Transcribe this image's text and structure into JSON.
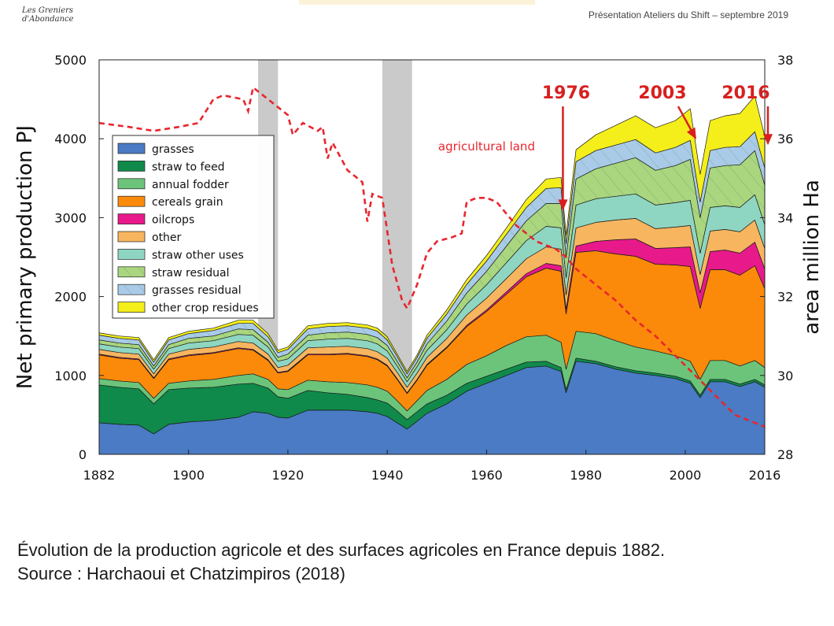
{
  "header": {
    "logo_line1": "Les Greniers",
    "logo_line2": "d'Abondance",
    "presentation": "Présentation Ateliers du Shift – septembre 2019"
  },
  "caption": {
    "line1": "Évolution de la production agricole et des surfaces agricoles en France depuis 1882.",
    "line2": "Source : Harchaoui et Chatzimpiros (2018)"
  },
  "colors": {
    "grasses": "#4a7bc4",
    "straw_to_feed": "#0f8a4a",
    "annual_fodder": "#6cc47a",
    "cereals_grain": "#fb8a0a",
    "oilcrops": "#e8198a",
    "other": "#f7b560",
    "straw_other_uses": "#8fd6c2",
    "straw_residual": "#a9d67e",
    "grasses_residual": "#a9cbe8",
    "other_crop_residues": "#f4ee1a",
    "agri_land_line": "#e8262e",
    "annotation": "#d81f1f",
    "war_band": "#b8b8b8"
  },
  "chart_data": {
    "type": "area",
    "title": "",
    "xlabel": "",
    "ylabel": "Net primary production PJ",
    "y2label": "area million Ha",
    "xlim": [
      1882,
      2016
    ],
    "ylim": [
      0,
      5000
    ],
    "y2lim": [
      28,
      38
    ],
    "x_ticks": [
      "1882",
      "1900",
      "1920",
      "1940",
      "1960",
      "1980",
      "2000",
      "2016"
    ],
    "y_ticks": [
      "0",
      "1000",
      "2000",
      "3000",
      "4000",
      "5000"
    ],
    "y2_ticks": [
      "28",
      "30",
      "32",
      "34",
      "36",
      "38"
    ],
    "war_periods": [
      [
        1914,
        1918
      ],
      [
        1939,
        1945
      ]
    ],
    "x": [
      1882,
      1886,
      1890,
      1893,
      1896,
      1900,
      1905,
      1910,
      1913,
      1916,
      1918,
      1920,
      1924,
      1928,
      1932,
      1936,
      1938,
      1940,
      1942,
      1944,
      1946,
      1948,
      1952,
      1956,
      1960,
      1964,
      1968,
      1972,
      1975,
      1976,
      1978,
      1982,
      1986,
      1990,
      1994,
      1998,
      2001,
      2003,
      2005,
      2008,
      2011,
      2014,
      2016
    ],
    "series": [
      {
        "name": "grasses",
        "values": [
          400,
          380,
          370,
          260,
          380,
          410,
          430,
          470,
          540,
          520,
          470,
          460,
          560,
          560,
          560,
          540,
          520,
          480,
          400,
          320,
          420,
          520,
          640,
          800,
          900,
          1000,
          1100,
          1120,
          1050,
          780,
          1180,
          1150,
          1080,
          1030,
          1000,
          960,
          900,
          720,
          920,
          920,
          860,
          920,
          850
        ]
      },
      {
        "name": "straw to feed",
        "values": [
          480,
          470,
          460,
          380,
          440,
          430,
          420,
          420,
          360,
          320,
          260,
          250,
          250,
          220,
          200,
          180,
          170,
          170,
          150,
          120,
          120,
          120,
          110,
          100,
          90,
          80,
          70,
          60,
          50,
          40,
          40,
          30,
          30,
          30,
          30,
          30,
          30,
          30,
          30,
          30,
          30,
          30,
          30
        ]
      },
      {
        "name": "annual fodder",
        "values": [
          80,
          80,
          80,
          70,
          80,
          90,
          100,
          110,
          120,
          110,
          100,
          110,
          130,
          140,
          150,
          160,
          160,
          150,
          130,
          110,
          140,
          170,
          200,
          240,
          260,
          300,
          320,
          330,
          320,
          260,
          340,
          350,
          330,
          300,
          280,
          260,
          250,
          200,
          240,
          240,
          230,
          240,
          220
        ]
      },
      {
        "name": "cereals grain",
        "values": [
          300,
          290,
          290,
          250,
          300,
          320,
          330,
          340,
          300,
          240,
          200,
          230,
          320,
          340,
          360,
          360,
          350,
          320,
          270,
          220,
          260,
          320,
          400,
          480,
          560,
          650,
          760,
          850,
          900,
          700,
          1000,
          1050,
          1100,
          1150,
          1100,
          1150,
          1200,
          900,
          1150,
          1150,
          1150,
          1200,
          1000
        ]
      },
      {
        "name": "oilcrops",
        "values": [
          10,
          10,
          10,
          10,
          10,
          10,
          10,
          10,
          10,
          10,
          10,
          10,
          10,
          10,
          10,
          10,
          10,
          10,
          10,
          10,
          10,
          10,
          10,
          15,
          20,
          30,
          40,
          60,
          70,
          60,
          80,
          120,
          180,
          220,
          200,
          220,
          250,
          200,
          230,
          250,
          280,
          300,
          250
        ]
      },
      {
        "name": "other",
        "values": [
          60,
          60,
          60,
          50,
          60,
          70,
          70,
          80,
          80,
          70,
          60,
          70,
          80,
          90,
          90,
          90,
          90,
          90,
          80,
          70,
          80,
          90,
          110,
          130,
          150,
          170,
          190,
          210,
          210,
          180,
          230,
          240,
          250,
          260,
          250,
          260,
          270,
          230,
          260,
          260,
          270,
          280,
          260
        ]
      },
      {
        "name": "straw other uses",
        "values": [
          70,
          70,
          70,
          60,
          70,
          80,
          80,
          90,
          100,
          90,
          80,
          80,
          90,
          100,
          100,
          100,
          100,
          90,
          80,
          70,
          80,
          90,
          110,
          140,
          170,
          200,
          230,
          260,
          270,
          220,
          290,
          300,
          300,
          310,
          300,
          310,
          320,
          270,
          300,
          300,
          310,
          320,
          300
        ]
      },
      {
        "name": "straw residual",
        "values": [
          50,
          50,
          50,
          40,
          50,
          60,
          60,
          70,
          70,
          60,
          50,
          60,
          70,
          80,
          80,
          80,
          80,
          70,
          60,
          50,
          60,
          80,
          110,
          140,
          170,
          210,
          250,
          290,
          310,
          260,
          330,
          380,
          420,
          460,
          440,
          470,
          520,
          450,
          500,
          510,
          540,
          560,
          500
        ]
      },
      {
        "name": "grasses residual",
        "values": [
          60,
          60,
          60,
          50,
          60,
          60,
          70,
          70,
          80,
          70,
          60,
          60,
          80,
          80,
          80,
          80,
          80,
          70,
          60,
          50,
          60,
          70,
          90,
          110,
          130,
          150,
          170,
          190,
          200,
          170,
          220,
          230,
          230,
          230,
          220,
          230,
          240,
          200,
          220,
          230,
          230,
          240,
          220
        ]
      },
      {
        "name": "other crop residues",
        "values": [
          30,
          30,
          30,
          30,
          30,
          30,
          30,
          40,
          40,
          40,
          30,
          30,
          40,
          40,
          40,
          40,
          40,
          40,
          30,
          30,
          30,
          40,
          50,
          60,
          70,
          80,
          100,
          120,
          130,
          110,
          150,
          200,
          250,
          300,
          320,
          340,
          400,
          350,
          380,
          400,
          420,
          450,
          400
        ]
      }
    ],
    "secondary_series": {
      "name": "agricultural land",
      "style": "dashed",
      "x": [
        1882,
        1888,
        1893,
        1898,
        1902,
        1905,
        1907,
        1911,
        1912,
        1913,
        1916,
        1920,
        1921,
        1923,
        1926,
        1927,
        1928,
        1929,
        1932,
        1935,
        1936,
        1937,
        1939,
        1941,
        1943,
        1944,
        1946,
        1948,
        1950,
        1953,
        1955,
        1956,
        1958,
        1960,
        1962,
        1964,
        1966,
        1968,
        1970,
        1972,
        1974,
        1976,
        1978,
        1982,
        1986,
        1990,
        1994,
        1998,
        2002,
        2006,
        2010,
        2014,
        2016
      ],
      "values": [
        36.4,
        36.3,
        36.2,
        36.3,
        36.4,
        37.0,
        37.1,
        37.0,
        36.7,
        37.3,
        37.0,
        36.6,
        36.1,
        36.4,
        36.2,
        36.3,
        35.5,
        35.9,
        35.2,
        34.9,
        33.9,
        34.6,
        34.5,
        32.8,
        31.9,
        31.7,
        32.3,
        33.1,
        33.4,
        33.5,
        33.6,
        34.4,
        34.5,
        34.5,
        34.4,
        34.1,
        33.8,
        33.6,
        33.4,
        33.3,
        33.2,
        33.0,
        32.7,
        32.3,
        31.9,
        31.4,
        31.0,
        30.5,
        30.0,
        29.5,
        29.0,
        28.8,
        28.7
      ]
    },
    "legend": {
      "position": "upper-left",
      "entries": [
        "grasses",
        "straw to feed",
        "annual fodder",
        "cereals grain",
        "oilcrops",
        "other",
        "straw other uses",
        "straw residual",
        "grasses residual",
        "other crop residues"
      ]
    },
    "annotations": [
      {
        "label": "agricultural land",
        "x": 1960,
        "y": 35.7,
        "axis": "right"
      },
      {
        "label": "1976",
        "x": 1976,
        "y": 4600,
        "arrow_to": 3050
      },
      {
        "label": "2003",
        "x": 2003,
        "y": 4600,
        "arrow_to": 3950
      },
      {
        "label": "2016",
        "x": 2016,
        "y": 4600,
        "arrow_to": 3880
      }
    ]
  }
}
